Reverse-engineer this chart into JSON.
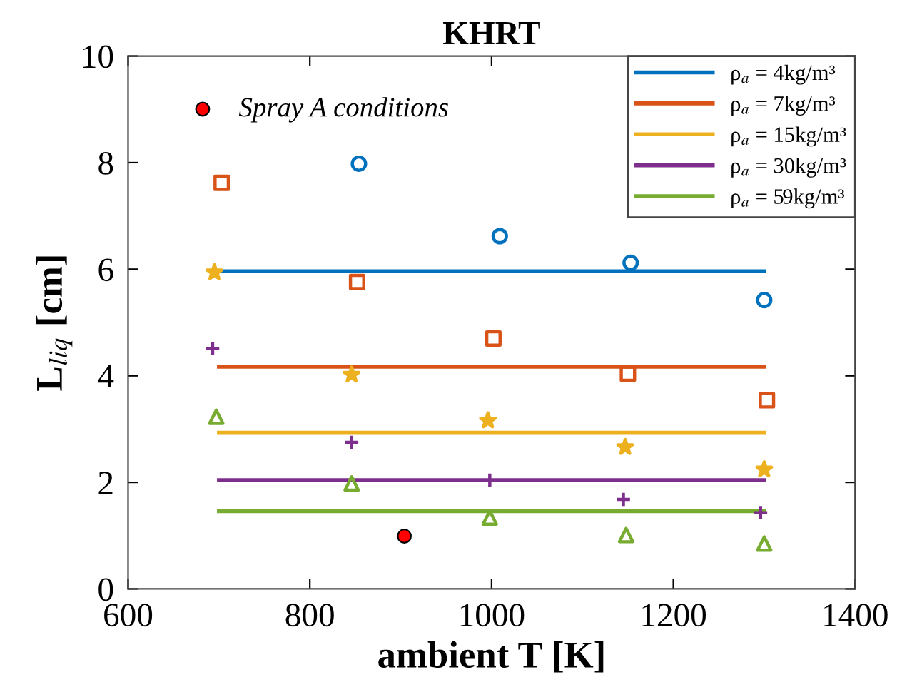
{
  "chart_data": {
    "type": "scatter",
    "title": "KHRT",
    "xlabel": "ambient T [K]",
    "ylabel": "L$_{liq}$ [cm]",
    "xlim": [
      600,
      1400
    ],
    "xticks": [
      600,
      800,
      1000,
      1200,
      1400
    ],
    "ylim": [
      0,
      10
    ],
    "yticks": [
      0,
      2,
      4,
      6,
      8,
      10
    ],
    "grid": false,
    "legend": "top right",
    "series": [
      {
        "marker": "circle",
        "color": "#0072bd",
        "x": [
          854,
          1009,
          1153,
          1300
        ],
        "values": [
          7.98,
          6.62,
          6.12,
          5.42
        ]
      },
      {
        "marker": "square",
        "color": "#d95319",
        "x": [
          703,
          852,
          1002,
          1150,
          1303
        ],
        "values": [
          7.62,
          5.76,
          4.7,
          4.04,
          3.54
        ]
      },
      {
        "marker": "star",
        "color": "#edb120",
        "x": [
          695,
          846,
          996,
          1147,
          1300
        ],
        "values": [
          5.94,
          4.02,
          3.16,
          2.66,
          2.24
        ]
      },
      {
        "marker": "cross",
        "color": "#7e2f8e",
        "x": [
          693,
          846,
          998,
          1145,
          1296
        ],
        "values": [
          4.51,
          2.75,
          2.04,
          1.68,
          1.43
        ]
      },
      {
        "marker": "triangle",
        "color": "#77ac30",
        "x": [
          697,
          846,
          998,
          1148,
          1300
        ],
        "values": [
          3.23,
          1.98,
          1.34,
          1.01,
          0.85
        ]
      },
      {
        "type": "line",
        "name": "ρ$_{a}$ = 4kg/m³",
        "color": "#0072bd",
        "x": [
          700,
          1300
        ],
        "values": [
          5.96,
          5.96
        ]
      },
      {
        "type": "line",
        "name": "ρ$_{a}$ = 7kg/m³",
        "color": "#d95319",
        "x": [
          700,
          1300
        ],
        "values": [
          4.17,
          4.17
        ]
      },
      {
        "type": "line",
        "name": "ρ$_{a}$ = 15kg/m³",
        "color": "#edb120",
        "x": [
          700,
          1300
        ],
        "values": [
          2.93,
          2.93
        ]
      },
      {
        "type": "line",
        "name": "ρ$_{a}$ = 30kg/m³",
        "color": "#7e2f8e",
        "x": [
          700,
          1300
        ],
        "values": [
          2.04,
          2.04
        ]
      },
      {
        "type": "line",
        "name": "ρ$_{a}$ = 59kg/m³",
        "color": "#77ac30",
        "x": [
          700,
          1300
        ],
        "values": [
          1.46,
          1.46
        ]
      },
      {
        "marker": "circle",
        "name": "Spray A conditions",
        "color": "#ff0000",
        "x": [
          904
        ],
        "values": [
          0.99
        ]
      }
    ]
  }
}
